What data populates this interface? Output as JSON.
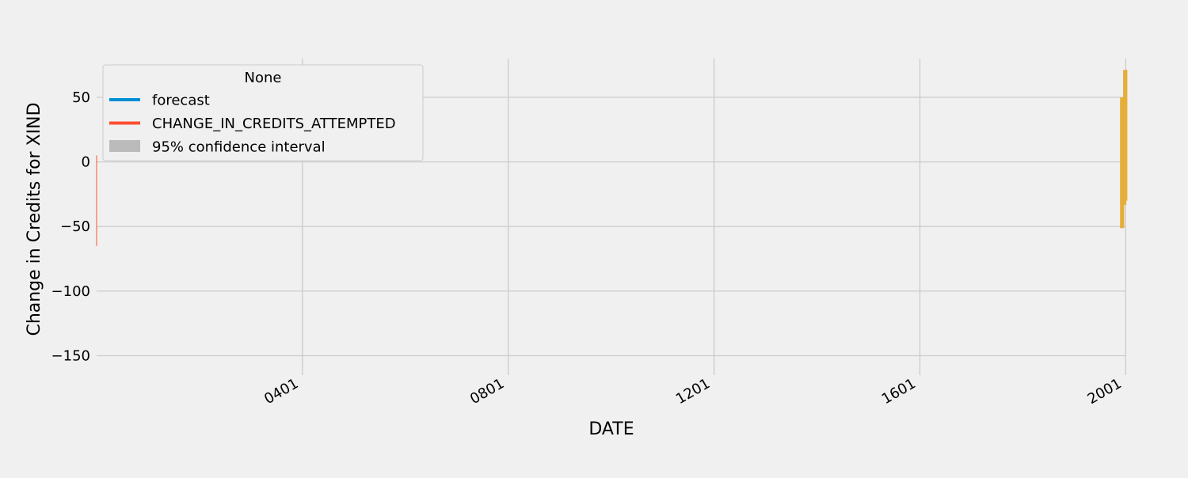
{
  "chart_data": {
    "type": "line",
    "xlabel": "DATE",
    "ylabel": "Change in Credits for XIND",
    "ylim": [
      -165,
      80
    ],
    "xlim": [
      1,
      2002
    ],
    "grid": true,
    "x_ticks": [
      {
        "value": 401,
        "label": "0401"
      },
      {
        "value": 801,
        "label": "0801"
      },
      {
        "value": 1201,
        "label": "1201"
      },
      {
        "value": 1601,
        "label": "1601"
      },
      {
        "value": 2001,
        "label": "2001"
      }
    ],
    "y_ticks": [
      {
        "value": 50,
        "label": "50"
      },
      {
        "value": 0,
        "label": "0"
      },
      {
        "value": -50,
        "label": "−50"
      },
      {
        "value": -100,
        "label": "−100"
      },
      {
        "value": -150,
        "label": "−150"
      }
    ],
    "legend": {
      "title": "None",
      "placement": "upper-left",
      "entries": [
        {
          "label": "forecast",
          "kind": "line",
          "color": "#008fd5"
        },
        {
          "label": "CHANGE_IN_CREDITS_ATTEMPTED",
          "kind": "line",
          "color": "#fc4f30"
        },
        {
          "label": "95% confidence interval",
          "kind": "patch",
          "color": "#bbbbbb"
        }
      ]
    },
    "series": [
      {
        "name": "CHANGE_IN_CREDITS_ATTEMPTED",
        "color": "#fc4f30",
        "points": [
          [
            1,
            5
          ],
          [
            1,
            -65
          ]
        ]
      },
      {
        "color": "#e5ae38",
        "points": [
          [
            1993,
            50
          ],
          [
            1993,
            -50
          ],
          [
            1995,
            -50
          ],
          [
            1995,
            48
          ],
          [
            1997,
            48
          ],
          [
            1997,
            -32
          ],
          [
            1999,
            -32
          ],
          [
            1999,
            70
          ],
          [
            2001,
            70
          ],
          [
            2001,
            -30
          ],
          [
            2002,
            -30
          ]
        ]
      }
    ]
  }
}
